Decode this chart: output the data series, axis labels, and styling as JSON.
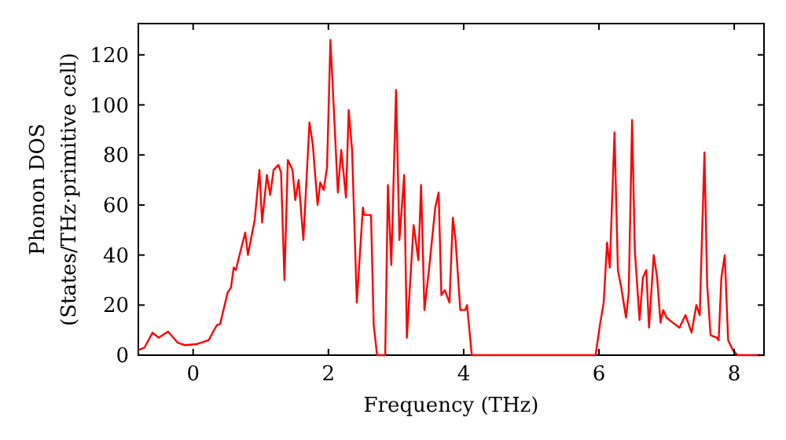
{
  "chart_data": {
    "type": "line",
    "xlabel": "Frequency (THz)",
    "ylabel": "Phonon DOS\n(States/THz·primitive cell)",
    "xlim": [
      -0.81,
      8.44
    ],
    "ylim": [
      0,
      132.5
    ],
    "xticks": [
      0,
      2,
      4,
      6,
      8
    ],
    "yticks": [
      0,
      20,
      40,
      60,
      80,
      100,
      120
    ],
    "grid": false,
    "marker": "none",
    "line_style": "solid",
    "series": [
      {
        "color": "#ff0000",
        "x": [
          -0.81,
          -0.72,
          -0.6,
          -0.51,
          -0.37,
          -0.23,
          -0.12,
          0.05,
          0.23,
          0.35,
          0.4,
          0.51,
          0.56,
          0.6,
          0.63,
          0.77,
          0.81,
          0.91,
          0.98,
          1.02,
          1.09,
          1.14,
          1.19,
          1.26,
          1.3,
          1.35,
          1.4,
          1.47,
          1.51,
          1.56,
          1.63,
          1.72,
          1.77,
          1.84,
          1.88,
          1.93,
          1.98,
          2.03,
          2.14,
          2.19,
          2.26,
          2.3,
          2.35,
          2.42,
          2.51,
          2.53,
          2.63,
          2.67,
          2.72,
          2.84,
          2.88,
          2.93,
          3.0,
          3.05,
          3.12,
          3.16,
          3.26,
          3.33,
          3.37,
          3.42,
          3.49,
          3.58,
          3.63,
          3.67,
          3.72,
          3.79,
          3.84,
          3.88,
          3.95,
          4.02,
          4.05,
          4.12,
          5.95,
          6.02,
          6.07,
          6.12,
          6.16,
          6.23,
          6.28,
          6.33,
          6.4,
          6.44,
          6.49,
          6.53,
          6.6,
          6.65,
          6.7,
          6.74,
          6.81,
          6.86,
          6.91,
          6.95,
          7.0,
          7.09,
          7.19,
          7.28,
          7.37,
          7.44,
          7.49,
          7.56,
          7.6,
          7.65,
          7.74,
          7.77,
          7.81,
          7.86,
          7.91,
          7.98,
          8.05,
          8.44
        ],
        "values": [
          2,
          3,
          9,
          7,
          9.4,
          5,
          4,
          4.4,
          6,
          12,
          12.5,
          25,
          27,
          35,
          34,
          49,
          40,
          54,
          74,
          53,
          72,
          64,
          74,
          76,
          73,
          30,
          78,
          74,
          62,
          70,
          46,
          93,
          84,
          60,
          69,
          66,
          75,
          126,
          65,
          82,
          63,
          98,
          82,
          21,
          59,
          56,
          56,
          12,
          0,
          0,
          68,
          36,
          106,
          46,
          72,
          7,
          52,
          38,
          68,
          18,
          35,
          59,
          65,
          24,
          26,
          21,
          55,
          46,
          18,
          18,
          20,
          0,
          0,
          13,
          21,
          45,
          35,
          89,
          34,
          27,
          15,
          25,
          94,
          42,
          14,
          31,
          34,
          11,
          40,
          31,
          13,
          18,
          15,
          13,
          11,
          16,
          9,
          20,
          16,
          81,
          28,
          8,
          7,
          6,
          31,
          40,
          6,
          2,
          0,
          0
        ]
      }
    ]
  }
}
